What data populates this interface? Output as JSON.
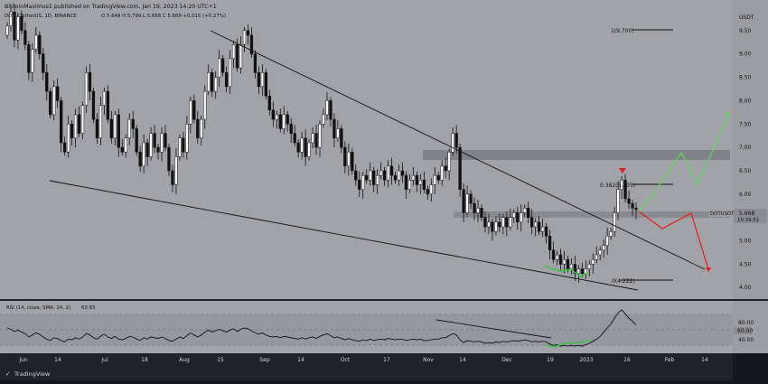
{
  "header": {
    "published": "BitcoinMaximus1 published on TradingView.com, Jan 19, 2023 14:20 UTC+1",
    "symbol_line": "DOT / TetherUS, 1D, BINANCE",
    "ohlc": "O 5.648  H 5.799  L 5.668  C 5.668  +0.015 (+0.27%)"
  },
  "price_axis": {
    "currency": "USDT",
    "ticks": [
      "9.50",
      "9.00",
      "8.50",
      "8.00",
      "7.50",
      "7.00",
      "6.50",
      "6.00",
      "5.50",
      "5.00",
      "4.50",
      "4.00"
    ]
  },
  "rsi": {
    "label": "RSI (14, close, SMA, 14, 2)",
    "value": "63.83",
    "ticks": [
      "80.00",
      "60.00",
      "40.00"
    ]
  },
  "time_axis": {
    "ticks": [
      "Jun",
      "14",
      "Jul",
      "18",
      "Aug",
      "15",
      "Sep",
      "14",
      "Oct",
      "17",
      "Nov",
      "14",
      "Dec",
      "19",
      "2023",
      "16",
      "Feb",
      "14"
    ]
  },
  "price_label": {
    "symbol": "DOTUSDT",
    "price": "5.668",
    "countdown": "10:39:52"
  },
  "fib_labels": {
    "top": "1(9.700)",
    "mid": "0.382(6.305)",
    "bottom": "0(4.222)"
  },
  "footer": {
    "brand": "TradingView"
  },
  "chart_data": {
    "type": "candlestick",
    "ylim": [
      3.85,
      10.0
    ],
    "rsi_ylim": [
      25,
      95
    ],
    "close": [
      9.6,
      9.9,
      9.3,
      9.8,
      9.5,
      9.2,
      8.6,
      9.1,
      9.4,
      9.0,
      8.6,
      8.2,
      7.7,
      8.3,
      8.0,
      7.1,
      6.9,
      7.5,
      7.2,
      7.7,
      7.3,
      7.9,
      8.6,
      8.2,
      7.6,
      7.2,
      7.9,
      8.2,
      7.6,
      7.2,
      7.7,
      7.0,
      6.9,
      7.2,
      7.6,
      7.4,
      6.9,
      6.6,
      7.1,
      6.8,
      7.3,
      7.0,
      6.9,
      7.3,
      7.0,
      6.5,
      6.2,
      6.8,
      7.2,
      6.9,
      7.5,
      8.0,
      7.6,
      7.2,
      7.6,
      8.2,
      8.6,
      8.2,
      8.5,
      8.9,
      8.6,
      8.3,
      8.9,
      9.2,
      8.7,
      9.2,
      9.5,
      9.4,
      9.0,
      8.6,
      8.3,
      8.6,
      8.1,
      7.8,
      7.6,
      7.7,
      7.4,
      7.7,
      7.5,
      7.3,
      7.1,
      6.9,
      7.2,
      6.8,
      7.1,
      7.3,
      7.0,
      7.5,
      7.7,
      8.0,
      7.6,
      7.2,
      7.4,
      7.0,
      6.6,
      6.9,
      6.5,
      6.3,
      6.1,
      6.4,
      6.3,
      6.5,
      6.2,
      6.4,
      6.5,
      6.3,
      6.6,
      6.4,
      6.3,
      6.5,
      6.4,
      6.1,
      6.3,
      6.4,
      6.2,
      6.3,
      6.1,
      6.0,
      6.2,
      6.4,
      6.3,
      6.6,
      6.5,
      6.9,
      7.3,
      7.0,
      6.1,
      5.6,
      6.0,
      5.8,
      5.6,
      5.7,
      5.5,
      5.3,
      5.4,
      5.2,
      5.4,
      5.3,
      5.5,
      5.3,
      5.5,
      5.6,
      5.4,
      5.6,
      5.7,
      5.5,
      5.3,
      5.4,
      5.2,
      5.3,
      5.1,
      4.8,
      4.6,
      4.7,
      4.5,
      4.6,
      4.4,
      4.5,
      4.3,
      4.4,
      4.3,
      4.4,
      4.5,
      4.6,
      4.7,
      4.8,
      4.9,
      5.1,
      5.2,
      5.6,
      6.1,
      6.3,
      5.9,
      5.8,
      5.7,
      5.668
    ],
    "rsi": [
      60,
      58,
      55,
      57,
      54,
      52,
      47,
      50,
      53,
      51,
      47,
      44,
      42,
      46,
      45,
      42,
      40,
      44,
      43,
      46,
      44,
      47,
      52,
      50,
      46,
      44,
      48,
      51,
      47,
      45,
      48,
      44,
      43,
      45,
      48,
      47,
      44,
      42,
      46,
      44,
      47,
      46,
      45,
      47,
      45,
      42,
      41,
      44,
      47,
      45,
      49,
      53,
      50,
      47,
      50,
      54,
      57,
      54,
      56,
      58,
      56,
      54,
      57,
      59,
      55,
      58,
      60,
      59,
      56,
      53,
      51,
      53,
      50,
      48,
      47,
      48,
      46,
      48,
      47,
      46,
      45,
      44,
      46,
      44,
      46,
      47,
      45,
      48,
      50,
      52,
      49,
      46,
      47,
      45,
      43,
      45,
      43,
      42,
      41,
      43,
      42,
      44,
      42,
      43,
      44,
      43,
      45,
      44,
      43,
      44,
      44,
      42,
      43,
      44,
      43,
      44,
      42,
      42,
      43,
      44,
      44,
      46,
      46,
      49,
      52,
      50,
      43,
      39,
      42,
      41,
      40,
      41,
      40,
      38,
      39,
      38,
      40,
      39,
      41,
      40,
      41,
      42,
      41,
      42,
      43,
      42,
      40,
      41,
      40,
      41,
      40,
      37,
      35,
      36,
      34,
      35,
      34,
      35,
      34,
      35,
      34,
      36,
      38,
      41,
      44,
      48,
      54,
      60,
      66,
      74,
      82,
      86,
      80,
      74,
      70,
      63.83
    ],
    "annotations": [
      "falling wedge",
      "horizontal resistance zones",
      "fibonacci retracement",
      "projected paths"
    ]
  }
}
